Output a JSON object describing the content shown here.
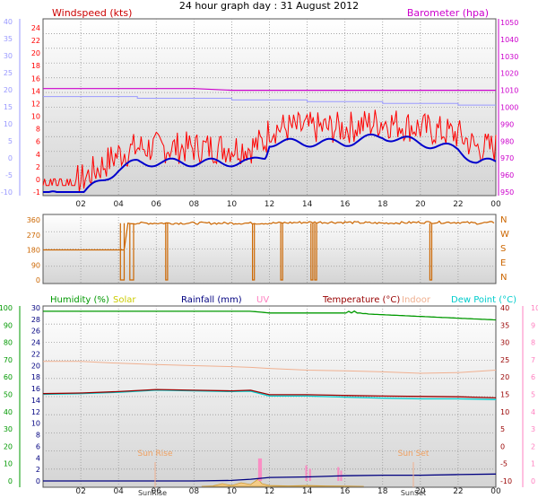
{
  "header": {
    "title": "24 hour graph day : 31 August 2012"
  },
  "time_axis": {
    "labels": [
      "02",
      "04",
      "06",
      "08",
      "10",
      "12",
      "14",
      "16",
      "18",
      "20",
      "22",
      "00"
    ]
  },
  "panels": {
    "wind": {
      "left_title": "Windspeed (kts)",
      "right_title": "Barometer (hpa)",
      "left_ticks_red": [
        "24",
        "22",
        "20",
        "18",
        "16",
        "14",
        "12",
        "10",
        "8",
        "6",
        "4",
        "2",
        "0",
        "-1"
      ],
      "left_ticks_blue": [
        "40",
        "35",
        "30",
        "25",
        "20",
        "15",
        "10",
        "5",
        "0",
        "-5",
        "-10"
      ],
      "right_ticks": [
        "1050",
        "1040",
        "1030",
        "1020",
        "1010",
        "1000",
        "990",
        "980",
        "970",
        "960",
        "950"
      ]
    },
    "direction": {
      "left_ticks": [
        "360",
        "270",
        "180",
        "90",
        "0"
      ],
      "right_labels": [
        "N",
        "W",
        "S",
        "E",
        "N"
      ]
    },
    "lower": {
      "legend": [
        {
          "label": "Humidity (%)",
          "color": "#009900"
        },
        {
          "label": "Solar",
          "color": "#cccc00"
        },
        {
          "label": "Rainfall (mm)",
          "color": "#000080"
        },
        {
          "label": "UV",
          "color": "#ff80c0"
        },
        {
          "label": "Temperature (°C)",
          "color": "#990000"
        },
        {
          "label": "Indoor",
          "color": "#f0b090"
        },
        {
          "label": "Dew Point (°C)",
          "color": "#00cccc"
        }
      ],
      "humidity_ticks": [
        "100",
        "90",
        "80",
        "70",
        "60",
        "50",
        "40",
        "30",
        "20",
        "10",
        "0"
      ],
      "rain_ticks": [
        "30",
        "28",
        "26",
        "24",
        "22",
        "20",
        "18",
        "16",
        "14",
        "12",
        "10",
        "8",
        "6",
        "4",
        "2",
        "0"
      ],
      "temp_ticks": [
        "40",
        "35",
        "30",
        "25",
        "20",
        "15",
        "10",
        "5",
        "0",
        "-5",
        "-10"
      ],
      "uv_ticks": [
        "10",
        "9",
        "8",
        "7",
        "6",
        "5",
        "4",
        "3",
        "2",
        "1",
        "0"
      ],
      "sunrise_label": "Sun Rise",
      "sunset_label": "Sun Set",
      "bottom_sunrise_label": "SunRise",
      "bottom_sunset_label": "SunSet"
    }
  },
  "colors": {
    "wind": "#ff0000",
    "gust_avg": "#0000cc",
    "barometer": "#cc00cc",
    "baro_secondary": "#9999ff",
    "direction": "#cc6600",
    "humidity": "#009900",
    "temperature": "#990000",
    "dewpoint": "#00cccc",
    "indoor": "#f0b090",
    "uv": "#ff80c0",
    "solar": "#cccc00",
    "rain": "#000080"
  },
  "chart_data": [
    {
      "type": "line",
      "title": "Windspeed (kts)",
      "x_unit": "hour",
      "x": [
        0,
        2,
        3,
        4,
        5,
        6,
        8,
        10,
        11,
        11.8,
        12,
        14,
        16,
        18,
        20,
        22,
        23,
        24
      ],
      "series": [
        {
          "name": "Windspeed (kts)",
          "values": [
            0,
            0,
            2,
            4,
            5,
            5,
            5,
            5,
            5,
            6,
            8,
            8,
            8,
            9,
            8,
            7,
            5,
            5
          ]
        },
        {
          "name": "Barometer (hpa)",
          "values": [
            1011,
            1011,
            1011,
            1011,
            1011,
            1011,
            1011,
            1010,
            1010,
            1010,
            1010,
            1010,
            1010,
            1010,
            1010,
            1010,
            1010,
            1010
          ]
        }
      ],
      "ylim_left": [
        -1,
        24
      ],
      "ylim_right": [
        950,
        1050
      ]
    },
    {
      "type": "line",
      "title": "",
      "x_unit": "hour",
      "series": [
        {
          "values": [
            180,
            180,
            180,
            180,
            340,
            340,
            340,
            340,
            340,
            340,
            340,
            345,
            345,
            340,
            345,
            345,
            340,
            345
          ]
        }
      ],
      "x": [
        0,
        2,
        3,
        4.3,
        4.5,
        6,
        8,
        10,
        11,
        11.8,
        12,
        14,
        16,
        18,
        20,
        22,
        23,
        24
      ],
      "ylim": [
        0,
        360
      ]
    },
    {
      "type": "line",
      "title": "",
      "x_unit": "hour",
      "x": [
        0,
        2,
        4,
        6,
        8,
        10,
        11,
        12,
        14,
        16,
        18,
        20,
        22,
        24
      ],
      "series": [
        {
          "name": "Humidity (%)",
          "values": [
            98,
            98,
            98,
            98,
            98,
            98,
            98,
            97,
            97,
            97,
            96,
            95,
            94,
            93
          ]
        },
        {
          "name": "Temperature (°C)",
          "values": [
            15.2,
            15.4,
            15.8,
            16.4,
            16.2,
            16.0,
            16.2,
            14.9,
            14.9,
            14.7,
            14.5,
            14.4,
            14.3,
            14.0
          ]
        },
        {
          "name": "Dew Point (°C)",
          "values": [
            15.0,
            15.2,
            15.6,
            16.2,
            16.0,
            15.8,
            15.9,
            14.5,
            14.5,
            14.2,
            13.9,
            13.7,
            13.7,
            13.5
          ]
        },
        {
          "name": "Indoor",
          "values": [
            24.5,
            24.5,
            24,
            23.6,
            23.3,
            23,
            22.8,
            22.5,
            22,
            21.8,
            21.5,
            21.1,
            21.3,
            22
          ]
        },
        {
          "name": "Rainfall (mm)",
          "values": [
            0,
            0,
            0,
            0,
            0,
            0.1,
            0.3,
            0.6,
            0.7,
            0.9,
            1.0,
            1.0,
            1.1,
            1.2
          ]
        }
      ],
      "ylim_left": [
        0,
        100
      ],
      "ylim_rain": [
        0,
        30
      ],
      "ylim_temp": [
        -10,
        40
      ],
      "ylim_uv": [
        0,
        10
      ]
    }
  ]
}
